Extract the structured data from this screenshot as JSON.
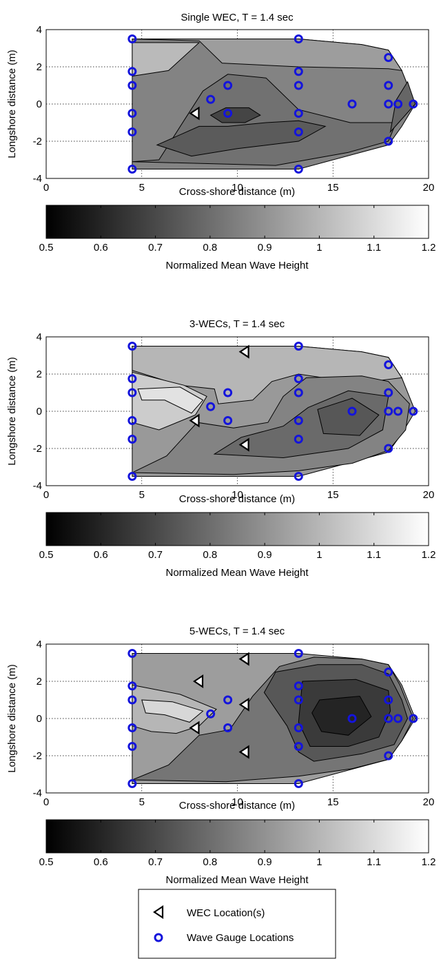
{
  "gauges": [
    [
      4.5,
      3.5
    ],
    [
      4.5,
      1.75
    ],
    [
      4.5,
      1.0
    ],
    [
      4.5,
      -0.5
    ],
    [
      4.5,
      -1.5
    ],
    [
      4.5,
      -3.5
    ],
    [
      8.6,
      0.25
    ],
    [
      9.5,
      1.0
    ],
    [
      9.5,
      -0.5
    ],
    [
      13.2,
      3.5
    ],
    [
      13.2,
      1.75
    ],
    [
      13.2,
      1.0
    ],
    [
      13.2,
      -0.5
    ],
    [
      13.2,
      -1.5
    ],
    [
      13.2,
      -3.5
    ],
    [
      16.0,
      0.0
    ],
    [
      17.9,
      2.5
    ],
    [
      17.9,
      1.0
    ],
    [
      17.9,
      0.0
    ],
    [
      17.9,
      -2.0
    ],
    [
      18.4,
      0.0
    ],
    [
      19.2,
      0.0
    ]
  ],
  "colors": {
    "gauge": "#1414dc",
    "grid": "#000000",
    "marker_fill": "#ffffff"
  },
  "colorbar": {
    "label": "Normalized Mean Wave Height",
    "ticks": [
      "0.5",
      "0.6",
      "0.7",
      "0.8",
      "0.9",
      "1",
      "1.1",
      "1.2"
    ],
    "range": [
      0.5,
      1.2
    ]
  },
  "legend": {
    "wec_label": "WEC Location(s)",
    "gauge_label": "Wave Gauge Locations"
  },
  "chart_data": [
    {
      "type": "contour",
      "title": "Single WEC, T = 1.4 sec",
      "xlabel": "Cross-shore distance (m)",
      "ylabel": "Longshore distance (m)",
      "xlim": [
        0,
        20
      ],
      "ylim": [
        -4,
        4
      ],
      "xticks": [
        "0",
        "5",
        "10",
        "15",
        "20"
      ],
      "yticks": [
        "4",
        "2",
        "0",
        "-2",
        "-4"
      ],
      "grid": true,
      "wec_locations": [
        [
          7.8,
          -0.5
        ]
      ],
      "wave_height_field": [
        {
          "level": 0.86,
          "region": "full domain"
        },
        {
          "level": 0.93,
          "region": "upper shoreward band"
        },
        {
          "level": 1.01,
          "region": "upper offshore patch"
        },
        {
          "level": 0.81,
          "region": "lee of WEC band"
        },
        {
          "level": 0.75,
          "region": "lee of WEC core"
        },
        {
          "level": 0.69,
          "region": "minimum near x = 10 m"
        },
        {
          "level": 0.78,
          "region": "tip near x = 19 m"
        }
      ]
    },
    {
      "type": "contour",
      "title": "3-WECs, T = 1.4 sec",
      "xlabel": "Cross-shore distance (m)",
      "ylabel": "Longshore distance (m)",
      "xlim": [
        0,
        20
      ],
      "ylim": [
        -4,
        4
      ],
      "xticks": [
        "0",
        "5",
        "10",
        "15",
        "20"
      ],
      "yticks": [
        "4",
        "2",
        "0",
        "-2",
        "-4"
      ],
      "grid": true,
      "wec_locations": [
        [
          7.8,
          -0.5
        ],
        [
          10.4,
          3.2
        ],
        [
          10.4,
          -1.8
        ]
      ],
      "wave_height_field": [
        {
          "level": 0.92,
          "region": "full domain"
        },
        {
          "level": 1.0,
          "region": "upper band"
        },
        {
          "level": 1.06,
          "region": "offshore light patch"
        },
        {
          "level": 1.12,
          "region": "light core"
        },
        {
          "level": 0.86,
          "region": "lee band"
        },
        {
          "level": 0.79,
          "region": "lee core"
        },
        {
          "level": 0.74,
          "region": "minimum near x = 16 m"
        }
      ]
    },
    {
      "type": "contour",
      "title": "5-WECs, T = 1.4 sec",
      "xlabel": "Cross-shore distance (m)",
      "ylabel": "Longshore distance (m)",
      "xlim": [
        0,
        20
      ],
      "ylim": [
        -4,
        4
      ],
      "xticks": [
        "0",
        "5",
        "10",
        "15",
        "20"
      ],
      "yticks": [
        "4",
        "2",
        "0",
        "-2",
        "-4"
      ],
      "grid": true,
      "wec_locations": [
        [
          7.8,
          -0.5
        ],
        [
          8.0,
          2.0
        ],
        [
          10.4,
          3.2
        ],
        [
          10.4,
          0.75
        ],
        [
          10.4,
          -1.8
        ]
      ],
      "wave_height_field": [
        {
          "level": 0.93,
          "region": "full domain"
        },
        {
          "level": 1.0,
          "region": "offshore light patch"
        },
        {
          "level": 1.09,
          "region": "light core"
        },
        {
          "level": 0.82,
          "region": "lee band"
        },
        {
          "level": 0.74,
          "region": "shoreward dark zone"
        },
        {
          "level": 0.66,
          "region": "dark zone"
        },
        {
          "level": 0.6,
          "region": "minimum near x = 16 m"
        }
      ]
    }
  ]
}
